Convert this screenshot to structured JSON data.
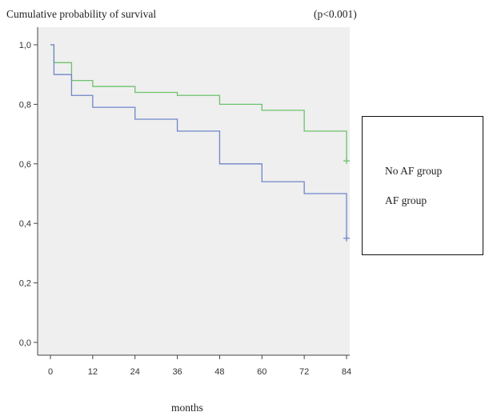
{
  "chart_data": {
    "type": "line",
    "title": "Cumulative probability of survival",
    "annotation": "(p<0.001)",
    "xlabel": "months",
    "ylabel": "",
    "xlim": [
      0,
      84
    ],
    "ylim": [
      0,
      1.0
    ],
    "x_ticks": [
      0,
      12,
      24,
      36,
      48,
      60,
      72,
      84
    ],
    "x_tick_labels": [
      "0",
      "12",
      "24",
      "36",
      "48",
      "60",
      "72",
      "84"
    ],
    "y_ticks": [
      0,
      0.2,
      0.4,
      0.6,
      0.8,
      1.0
    ],
    "y_tick_labels": [
      "0,0",
      "0,2",
      "0,4",
      "0,6",
      "0,8",
      "1,0"
    ],
    "grid": false,
    "legend_placement": "right",
    "series": [
      {
        "name": "No AF group",
        "color": "#6cc26c",
        "step_x": [
          0,
          1,
          6,
          12,
          24,
          36,
          48,
          60,
          72,
          84
        ],
        "step_y": [
          1.0,
          0.94,
          0.88,
          0.86,
          0.84,
          0.83,
          0.8,
          0.78,
          0.71,
          0.61
        ],
        "censor_x": [
          84
        ],
        "censor_y": [
          0.61
        ]
      },
      {
        "name": "AF group",
        "color": "#6f86c8",
        "step_x": [
          0,
          1,
          6,
          12,
          24,
          36,
          48,
          60,
          72,
          84
        ],
        "step_y": [
          1.0,
          0.9,
          0.83,
          0.79,
          0.75,
          0.71,
          0.6,
          0.54,
          0.5,
          0.35
        ],
        "censor_x": [
          84
        ],
        "censor_y": [
          0.35
        ]
      }
    ]
  }
}
